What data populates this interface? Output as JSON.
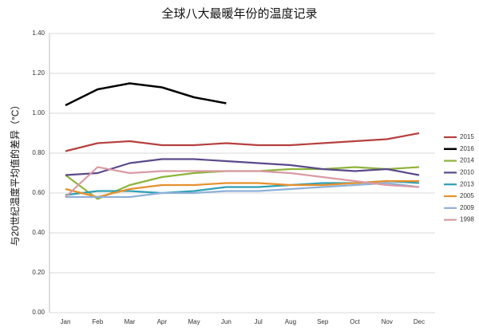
{
  "chart_data": {
    "type": "line",
    "title": "全球八大最暖年份的温度记录",
    "y_label": "与20世纪温度平均值的差异（°C）",
    "categories": [
      "Jan",
      "Feb",
      "Mar",
      "Apr",
      "May",
      "Jun",
      "Jul",
      "Aug",
      "Sep",
      "Oct",
      "Nov",
      "Dec"
    ],
    "series": [
      {
        "name": "2015",
        "color": "#b5413f",
        "values": [
          0.81,
          0.85,
          0.86,
          0.84,
          0.84,
          0.85,
          0.84,
          0.84,
          0.85,
          0.86,
          0.87,
          0.9
        ]
      },
      {
        "name": "2016",
        "color": "#000000",
        "values": [
          1.04,
          1.12,
          1.15,
          1.13,
          1.08,
          1.05,
          null,
          null,
          null,
          null,
          null,
          null
        ]
      },
      {
        "name": "2014",
        "color": "#8db43c",
        "values": [
          0.69,
          0.57,
          0.64,
          0.68,
          0.7,
          0.71,
          0.71,
          0.72,
          0.72,
          0.73,
          0.72,
          0.73
        ]
      },
      {
        "name": "2010",
        "color": "#5b4a8b",
        "values": [
          0.69,
          0.7,
          0.75,
          0.77,
          0.77,
          0.76,
          0.75,
          0.74,
          0.72,
          0.71,
          0.72,
          0.69
        ]
      },
      {
        "name": "2013",
        "color": "#2fa0b5",
        "values": [
          0.59,
          0.61,
          0.61,
          0.6,
          0.61,
          0.63,
          0.63,
          0.64,
          0.65,
          0.65,
          0.66,
          0.65
        ]
      },
      {
        "name": "2005",
        "color": "#e6902e",
        "values": [
          0.62,
          0.58,
          0.62,
          0.64,
          0.64,
          0.65,
          0.65,
          0.64,
          0.64,
          0.65,
          0.66,
          0.66
        ]
      },
      {
        "name": "2009",
        "color": "#8fb0d8",
        "values": [
          0.58,
          0.58,
          0.58,
          0.6,
          0.6,
          0.61,
          0.61,
          0.62,
          0.63,
          0.64,
          0.65,
          0.63
        ]
      },
      {
        "name": "1998",
        "color": "#d99aa5",
        "values": [
          0.58,
          0.73,
          0.7,
          0.71,
          0.71,
          0.71,
          0.71,
          0.7,
          0.68,
          0.66,
          0.64,
          0.63
        ]
      }
    ],
    "ylim": [
      0,
      1.4
    ],
    "yticks": [
      {
        "value": 0,
        "label": "0.00"
      },
      {
        "value": 0.2,
        "label": "0.20"
      },
      {
        "value": 0.4,
        "label": "0.40"
      },
      {
        "value": 0.6,
        "label": "0.60"
      },
      {
        "value": 0.8,
        "label": "0.80"
      },
      {
        "value": 1.0,
        "label": "1.00"
      },
      {
        "value": 1.2,
        "label": "1.20"
      },
      {
        "value": 1.4,
        "label": "1.40"
      }
    ],
    "grid": true,
    "legend": "right"
  }
}
